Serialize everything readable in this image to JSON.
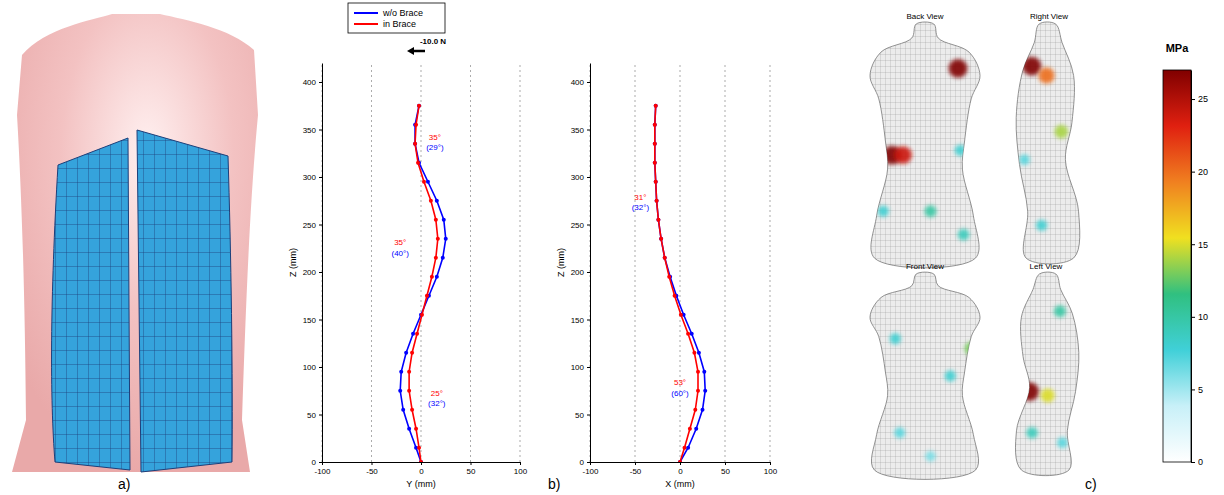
{
  "panels": [
    "a)",
    "b)",
    "c)"
  ],
  "chart_data": [
    {
      "type": "line",
      "xlabel": "Y (mm)",
      "ylabel": "Z (mm)",
      "xlim": [
        -100,
        100
      ],
      "ylim": [
        0,
        420
      ],
      "xticks": [
        -100,
        -50,
        0,
        50,
        100
      ],
      "yticks": [
        0,
        50,
        100,
        150,
        200,
        250,
        300,
        350,
        400
      ],
      "grid": true,
      "legend": "top",
      "marker": "circle",
      "series": [
        {
          "name": "w/o Brace",
          "color": "#0000ff",
          "x": [
            0,
            -5,
            -12,
            -18,
            -21,
            -20,
            -15,
            -8,
            0,
            8,
            16,
            22,
            25,
            23,
            16,
            7,
            -2,
            -6,
            -6,
            -2
          ],
          "values": [
            0,
            15,
            35,
            55,
            75,
            95,
            115,
            135,
            155,
            175,
            195,
            215,
            235,
            255,
            275,
            295,
            315,
            335,
            355,
            375
          ]
        },
        {
          "name": "in Brace",
          "color": "#ff0000",
          "x": [
            0,
            -2,
            -5,
            -9,
            -12,
            -12,
            -9,
            -4,
            1,
            6,
            11,
            15,
            17,
            15,
            10,
            3,
            -3,
            -6,
            -5,
            -2
          ],
          "values": [
            0,
            15,
            35,
            55,
            75,
            95,
            115,
            135,
            155,
            175,
            195,
            215,
            235,
            255,
            275,
            295,
            315,
            335,
            355,
            375
          ]
        }
      ],
      "annotations": [
        {
          "text": "-10.0 N",
          "x": 0,
          "y": 440,
          "color": "#000000",
          "arrow": "left"
        },
        {
          "text": "35°",
          "x": 14,
          "y": 339,
          "color": "#ff0000"
        },
        {
          "text": "(29°)",
          "x": 14,
          "y": 328,
          "color": "#0000ff"
        },
        {
          "text": "35°",
          "x": -21,
          "y": 228,
          "color": "#ff0000"
        },
        {
          "text": "(40°)",
          "x": -21,
          "y": 217,
          "color": "#0000ff"
        },
        {
          "text": "25°",
          "x": 16,
          "y": 70,
          "color": "#ff0000"
        },
        {
          "text": "(32°)",
          "x": 16,
          "y": 59,
          "color": "#0000ff"
        }
      ]
    },
    {
      "type": "line",
      "xlabel": "X (mm)",
      "ylabel": "Z (mm)",
      "xlim": [
        -100,
        100
      ],
      "ylim": [
        0,
        420
      ],
      "xticks": [
        -100,
        -50,
        0,
        50,
        100
      ],
      "yticks": [
        0,
        50,
        100,
        150,
        200,
        250,
        300,
        350,
        400
      ],
      "grid": true,
      "marker": "circle",
      "series": [
        {
          "color": "#0000ff",
          "x": [
            0,
            9,
            18,
            25,
            28,
            27,
            21,
            13,
            4,
            -4,
            -11,
            -17,
            -21,
            -24,
            -26,
            -27,
            -28,
            -28,
            -28,
            -27
          ],
          "values": [
            0,
            15,
            35,
            55,
            75,
            95,
            115,
            135,
            155,
            175,
            195,
            215,
            235,
            255,
            275,
            295,
            315,
            335,
            355,
            375
          ]
        },
        {
          "color": "#ff0000",
          "x": [
            0,
            5,
            11,
            17,
            20,
            20,
            16,
            9,
            1,
            -6,
            -12,
            -17,
            -21,
            -24,
            -26,
            -27,
            -28,
            -28,
            -28,
            -27
          ],
          "values": [
            0,
            15,
            35,
            55,
            75,
            95,
            115,
            135,
            155,
            175,
            195,
            215,
            235,
            255,
            275,
            295,
            315,
            335,
            355,
            375
          ]
        }
      ],
      "annotations": [
        {
          "text": "31°",
          "x": -44,
          "y": 276,
          "color": "#ff0000"
        },
        {
          "text": "(32°)",
          "x": -44,
          "y": 265,
          "color": "#0000ff"
        },
        {
          "text": "53°",
          "x": 0,
          "y": 81,
          "color": "#ff0000"
        },
        {
          "text": "(60°)",
          "x": 0,
          "y": 70,
          "color": "#0000ff"
        }
      ]
    }
  ],
  "pressure_map": {
    "views": [
      {
        "title": "Back View",
        "spots": [
          {
            "u": 0.8,
            "v": 0.19,
            "value": 27
          },
          {
            "u": 0.2,
            "v": 0.56,
            "value": 27
          },
          {
            "u": 0.3,
            "v": 0.56,
            "value": 24
          },
          {
            "u": 0.82,
            "v": 0.54,
            "value": 8
          },
          {
            "u": 0.55,
            "v": 0.8,
            "value": 10
          },
          {
            "u": 0.12,
            "v": 0.8,
            "value": 8
          },
          {
            "u": 0.85,
            "v": 0.9,
            "value": 9
          }
        ]
      },
      {
        "title": "Right View",
        "spots": [
          {
            "u": 0.29,
            "v": 0.18,
            "value": 27
          },
          {
            "u": 0.47,
            "v": 0.22,
            "value": 20
          },
          {
            "u": 0.65,
            "v": 0.46,
            "value": 14
          },
          {
            "u": 0.2,
            "v": 0.58,
            "value": 7
          },
          {
            "u": 0.41,
            "v": 0.86,
            "value": 8
          }
        ]
      },
      {
        "title": "Front View",
        "spots": [
          {
            "u": 0.23,
            "v": 0.33,
            "value": 8
          },
          {
            "u": 0.73,
            "v": 0.52,
            "value": 8
          },
          {
            "u": 0.92,
            "v": 0.38,
            "value": 13
          },
          {
            "u": 0.27,
            "v": 0.81,
            "value": 7
          },
          {
            "u": 0.55,
            "v": 0.93,
            "value": 6
          }
        ]
      },
      {
        "title": "Left View",
        "spots": [
          {
            "u": 0.3,
            "v": 0.6,
            "value": 27
          },
          {
            "u": 0.52,
            "v": 0.62,
            "value": 15
          },
          {
            "u": 0.67,
            "v": 0.19,
            "value": 10
          },
          {
            "u": 0.33,
            "v": 0.81,
            "value": 9
          },
          {
            "u": 0.7,
            "v": 0.86,
            "value": 7
          }
        ]
      }
    ],
    "colorbar": {
      "title": "MPa",
      "range": [
        0,
        27
      ],
      "ticks": [
        0,
        5,
        10,
        15,
        20,
        25
      ],
      "colors": [
        "#ffffff",
        "#c8f0f8",
        "#40d0d8",
        "#30c080",
        "#f0e020",
        "#f08020",
        "#e02010",
        "#800000"
      ]
    }
  }
}
